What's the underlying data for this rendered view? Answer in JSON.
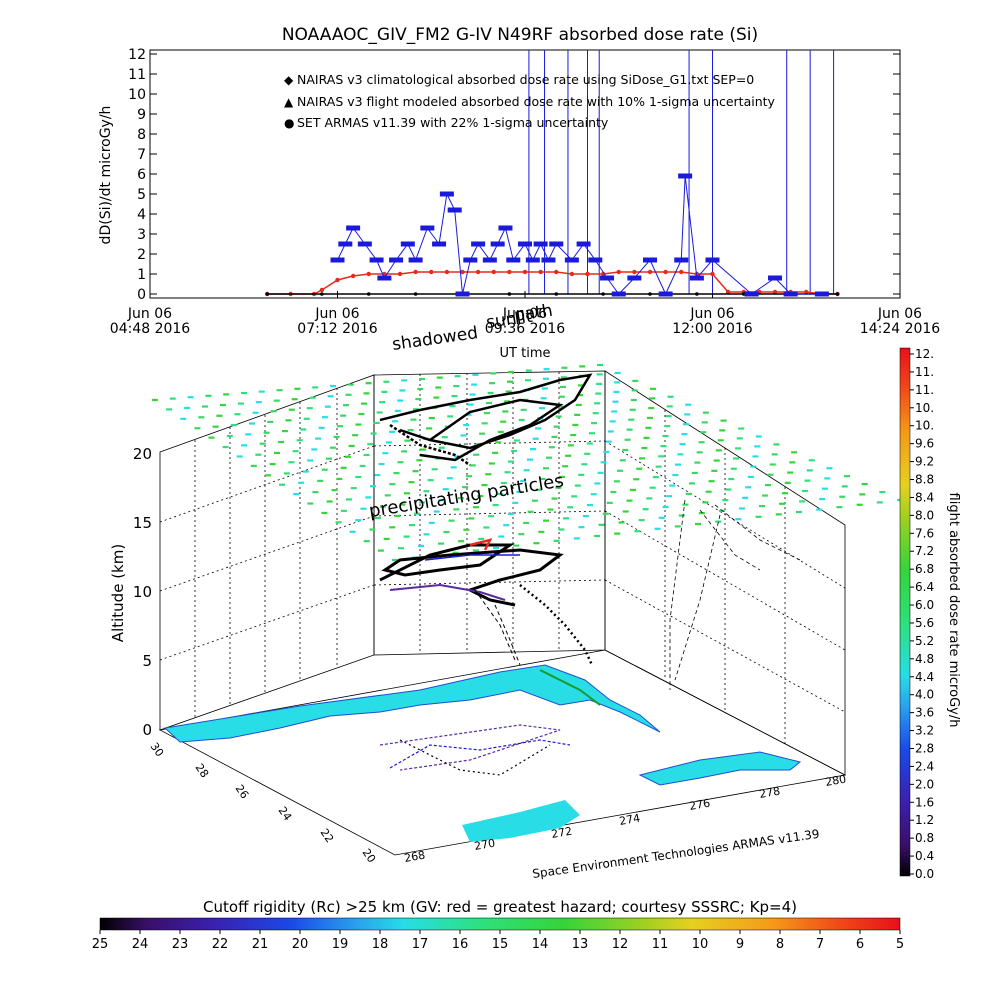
{
  "title": "NOAAAOC_GIV_FM2 G-IV   N49RF  absorbed dose rate (Si)",
  "top_chart": {
    "ylabel": "dD(Si)/dt microGy/h",
    "xlabel": "UT time",
    "ylim": [
      0,
      12
    ],
    "yticks": [
      "0",
      "1",
      "2",
      "3",
      "4",
      "5",
      "6",
      "7",
      "8",
      "9",
      "10",
      "11",
      "12"
    ],
    "xticks": [
      {
        "line1": "Jun 06",
        "line2": "04:48 2016"
      },
      {
        "line1": "Jun 06",
        "line2": "07:12 2016"
      },
      {
        "line1": "Jun 06",
        "line2": "09:36 2016"
      },
      {
        "line1": "Jun 06",
        "line2": "12:00 2016"
      },
      {
        "line1": "Jun 06",
        "line2": "14:24 2016"
      }
    ],
    "legend": [
      {
        "marker": "◆",
        "color": "#e8291c",
        "text": "NAIRAS v3 climatological absorbed dose rate using SiDose_G1.txt SEP=0"
      },
      {
        "marker": "▲",
        "color": "#000000",
        "text": "NAIRAS v3 flight modeled absorbed dose rate with 10% 1-sigma uncertainty"
      },
      {
        "marker": "●",
        "color": "#1a1adc",
        "text": "SET ARMAS v11.39 with 22% 1-sigma uncertainty"
      }
    ]
  },
  "overlay_labels": {
    "shadowed": "shadowed",
    "sunlit": "sunlit",
    "path": "path",
    "precipitating": "precipitating particles",
    "credit": "Space Environment Technologies ARMAS v11.39"
  },
  "three_d": {
    "zlabel": "Altitude (km)",
    "zticks": [
      "0",
      "5",
      "10",
      "15",
      "20"
    ],
    "lat_ticks": [
      "30",
      "28",
      "26",
      "24",
      "22",
      "20"
    ],
    "lon_ticks": [
      "268",
      "270",
      "272",
      "274",
      "276",
      "278",
      "280"
    ]
  },
  "right_colorbar": {
    "label": "flight absorbed dose rate microGy/h",
    "ticks": [
      "12.",
      "11.",
      "11.",
      "10.",
      "10.",
      "9.6",
      "9.2",
      "8.8",
      "8.4",
      "8.0",
      "7.6",
      "7.2",
      "6.8",
      "6.4",
      "6.0",
      "5.6",
      "5.2",
      "4.8",
      "4.4",
      "4.0",
      "3.6",
      "3.2",
      "2.8",
      "2.4",
      "2.0",
      "1.6",
      "1.2",
      "0.8",
      "0.4",
      "0.0"
    ]
  },
  "bottom_colorbar": {
    "title": "Cutoff rigidity (Rc) >25 km (GV: red = greatest hazard; courtesy SSSRC; Kp=4)",
    "ticks": [
      "25",
      "24",
      "23",
      "22",
      "21",
      "20",
      "19",
      "18",
      "17",
      "16",
      "15",
      "14",
      "13",
      "12",
      "11",
      "10",
      "9",
      "8",
      "7",
      "6",
      "5"
    ]
  },
  "colors": {
    "nairas_clim": "#e8291c",
    "nairas_flight": "#000000",
    "armas": "#1a1adc",
    "land": "#29dde6",
    "grid": "#000000"
  },
  "chart_data": [
    {
      "type": "scatter",
      "title": "NOAAAOC_GIV_FM2 G-IV   N49RF  absorbed dose rate (Si)",
      "xlabel": "UT time",
      "ylabel": "dD(Si)/dt microGy/h",
      "x_unit": "hours UT, Jun 06 2016",
      "xlim": [
        4.8,
        14.4
      ],
      "ylim": [
        0,
        12
      ],
      "grid": false,
      "legend_position": "top-left",
      "series": [
        {
          "name": "NAIRAS v3 climatological absorbed dose rate using SiDose_G1.txt SEP=0",
          "x": [
            6.3,
            6.6,
            6.9,
            7.0,
            7.2,
            7.4,
            7.6,
            7.8,
            8.0,
            8.2,
            8.4,
            8.6,
            8.8,
            9.0,
            9.2,
            9.4,
            9.6,
            9.8,
            10.0,
            10.2,
            10.4,
            10.6,
            10.8,
            11.0,
            11.2,
            11.4,
            11.6,
            11.8,
            12.0,
            12.2,
            12.4,
            12.6,
            12.8,
            13.0,
            13.2,
            13.4,
            13.6
          ],
          "values": [
            0,
            0,
            0,
            0.2,
            0.7,
            0.9,
            1.0,
            1.0,
            1.0,
            1.1,
            1.1,
            1.1,
            1.1,
            1.1,
            1.1,
            1.1,
            1.1,
            1.1,
            1.1,
            1.0,
            1.0,
            1.0,
            1.1,
            1.1,
            1.1,
            1.1,
            1.1,
            1.0,
            1.0,
            0.1,
            0.1,
            0.1,
            0.1,
            0.1,
            0.1,
            0.0,
            0.0
          ]
        },
        {
          "name": "NAIRAS v3 flight modeled absorbed dose rate with 10% 1-sigma uncertainty",
          "x": [
            6.3,
            7.0,
            7.6,
            8.2,
            8.8,
            9.4,
            10.0,
            10.6,
            11.2,
            11.8,
            12.4,
            13.0,
            13.6
          ],
          "values": [
            0,
            0,
            0,
            0,
            0,
            0,
            0,
            0,
            0,
            0,
            0,
            0,
            0
          ]
        },
        {
          "name": "SET ARMAS v11.39 with 22% 1-sigma uncertainty",
          "x": [
            7.2,
            7.3,
            7.4,
            7.55,
            7.7,
            7.8,
            7.95,
            8.1,
            8.2,
            8.35,
            8.5,
            8.6,
            8.7,
            8.8,
            8.9,
            9.0,
            9.15,
            9.25,
            9.35,
            9.45,
            9.6,
            9.7,
            9.8,
            9.9,
            10.0,
            10.2,
            10.35,
            10.5,
            10.65,
            10.8,
            11.0,
            11.2,
            11.4,
            11.6,
            11.65,
            11.8,
            12.0,
            12.5,
            12.8,
            13.0,
            13.4
          ],
          "values": [
            1.7,
            2.5,
            3.3,
            2.5,
            1.7,
            0.8,
            1.7,
            2.5,
            1.7,
            3.3,
            2.5,
            5.0,
            4.2,
            0,
            1.7,
            2.5,
            1.7,
            2.5,
            3.3,
            1.7,
            2.5,
            1.7,
            2.5,
            1.7,
            2.5,
            1.7,
            2.5,
            1.7,
            0.8,
            0,
            0.8,
            1.7,
            0,
            1.7,
            5.9,
            0.8,
            1.7,
            0,
            0.8,
            0,
            0
          ]
        }
      ]
    }
  ]
}
